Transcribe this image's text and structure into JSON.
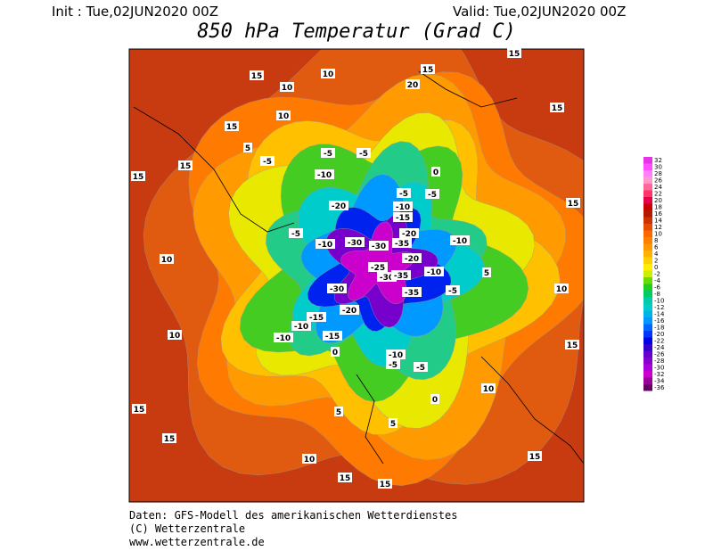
{
  "header": {
    "init": "Init : Tue,02JUN2020 00Z",
    "valid": "Valid: Tue,02JUN2020 00Z",
    "title": "850 hPa Temperatur (Grad C)"
  },
  "colorbar": {
    "levels": [
      32,
      30,
      28,
      26,
      24,
      22,
      20,
      18,
      16,
      14,
      12,
      10,
      8,
      6,
      4,
      2,
      0,
      -2,
      -4,
      -6,
      -8,
      -10,
      -12,
      -14,
      -16,
      -18,
      -20,
      -22,
      -24,
      -26,
      -28,
      -30,
      -32,
      -34,
      -36
    ],
    "colors": [
      "#e633e6",
      "#ff4dff",
      "#ff80ff",
      "#ff99cc",
      "#ff6699",
      "#ff3366",
      "#e6004c",
      "#cc0000",
      "#b31a00",
      "#cc3300",
      "#e64d00",
      "#ff6600",
      "#ff8000",
      "#ff9900",
      "#ffb300",
      "#ffd000",
      "#ffee00",
      "#ccee00",
      "#66dd00",
      "#22cc22",
      "#00cc66",
      "#00ccaa",
      "#00cccc",
      "#00b3e6",
      "#0099ff",
      "#0066ff",
      "#0033ff",
      "#0000e6",
      "#3300cc",
      "#6600cc",
      "#8800cc",
      "#aa00dd",
      "#cc00cc",
      "#990099",
      "#660066"
    ]
  },
  "contour_labels": [
    "15",
    "10",
    "10",
    "15",
    "10",
    "15",
    "5",
    "-5",
    "-5",
    "-5",
    "0",
    "-10",
    "-5",
    "-5",
    "-20",
    "-10",
    "-15",
    "-20",
    "-30",
    "-30",
    "-35",
    "-10",
    "-10",
    "-5",
    "-20",
    "-25",
    "-30",
    "-35",
    "-10",
    "-30",
    "-35",
    "-20",
    "-15",
    "-10",
    "-15",
    "-10",
    "-10",
    "-5",
    "-5",
    "0",
    "0",
    "5",
    "5",
    "10",
    "15",
    "15",
    "10",
    "10",
    "15",
    "15",
    "15",
    "15",
    "10",
    "5",
    "-5",
    "15",
    "10",
    "15",
    "15",
    "15",
    "20",
    "15"
  ],
  "footer": [
    "Daten: GFS-Modell des amerikanischen Wetterdienstes",
    "(C) Wetterzentrale",
    "www.wetterzentrale.de"
  ]
}
